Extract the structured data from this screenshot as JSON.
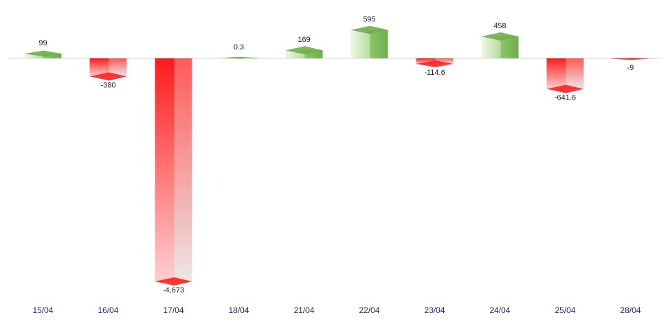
{
  "chart_data": {
    "type": "bar",
    "style": "3d-column",
    "categories": [
      "15/04",
      "16/04",
      "17/04",
      "18/04",
      "21/04",
      "22/04",
      "23/04",
      "24/04",
      "25/04",
      "28/04"
    ],
    "values": [
      99,
      -380,
      -4673,
      0.3,
      169,
      595,
      -114.6,
      458,
      -641.6,
      -9
    ],
    "data_labels": [
      "99",
      "-380",
      "-4,673",
      "0.3",
      "169",
      "595",
      "-114.6",
      "458",
      "-641.6",
      "-9"
    ],
    "title": "",
    "xlabel": "",
    "ylabel": "",
    "grid": false,
    "legend": "none",
    "colors": {
      "positive": "#8cc56a",
      "positive_light": "#e6f4da",
      "negative": "#ff1a1a",
      "negative_light": "#f0e6e6",
      "baseline": "#d0d0d0",
      "tick_text": "#1f2a6b",
      "label_text": "#222222"
    }
  }
}
